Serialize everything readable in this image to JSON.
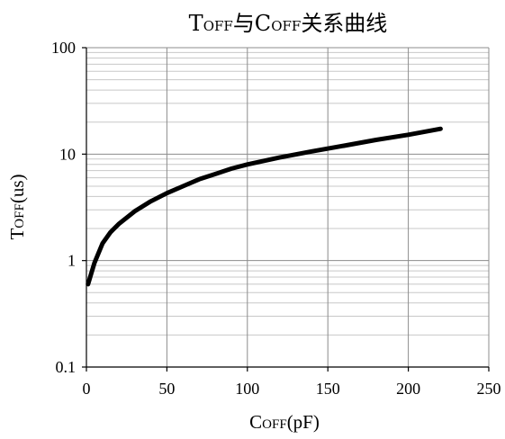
{
  "chart_data": {
    "type": "line",
    "title_main": "T",
    "title_sub1": "OFF",
    "title_mid": "与C",
    "title_sub2": "OFF",
    "title_tail": "关系曲线",
    "xlabel_main": "C",
    "xlabel_sub": "OFF",
    "xlabel_unit": "(pF)",
    "ylabel_main": "T",
    "ylabel_sub": "OFF",
    "ylabel_unit": "(us)",
    "xlim": [
      0,
      250
    ],
    "ylim": [
      0.1,
      100
    ],
    "yscale": "log",
    "grid": true,
    "x_ticks": [
      "0",
      "50",
      "100",
      "150",
      "200",
      "250"
    ],
    "y_ticks": [
      "0.1",
      "1",
      "10",
      "100"
    ],
    "series": [
      {
        "x": [
          1,
          5,
          10,
          15,
          20,
          30,
          40,
          50,
          60,
          70,
          80,
          90,
          100,
          120,
          140,
          160,
          180,
          200,
          220
        ],
        "y": [
          0.6,
          0.95,
          1.45,
          1.85,
          2.2,
          2.9,
          3.6,
          4.3,
          5.0,
          5.8,
          6.5,
          7.3,
          8.0,
          9.3,
          10.6,
          12.0,
          13.6,
          15.2,
          17.3
        ]
      }
    ]
  }
}
